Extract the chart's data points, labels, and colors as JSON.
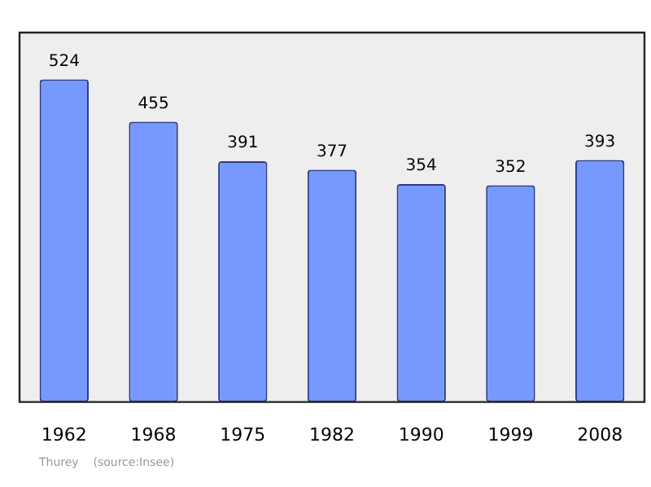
{
  "chart_data": {
    "type": "bar",
    "categories": [
      "1962",
      "1968",
      "1975",
      "1982",
      "1990",
      "1999",
      "2008"
    ],
    "values": [
      524,
      455,
      391,
      377,
      354,
      352,
      393
    ],
    "color": "#7799ff",
    "data_labels": true,
    "grid": false,
    "legend": false,
    "tick_labels": "x",
    "annotations": [
      "Thurey    (source:Insee)"
    ]
  }
}
